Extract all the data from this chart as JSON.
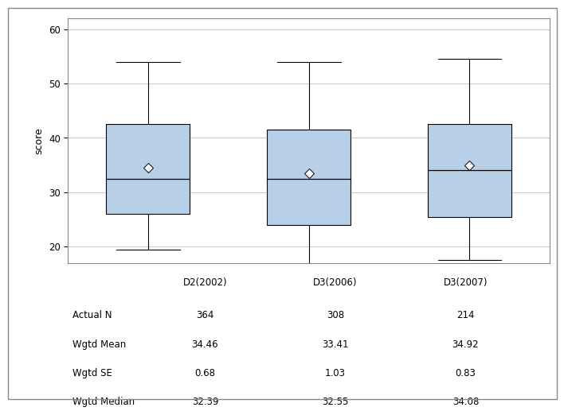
{
  "categories": [
    "D2(2002)",
    "D3(2006)",
    "D3(2007)"
  ],
  "boxes": [
    {
      "whisker_low": 19.5,
      "q1": 26.0,
      "median": 32.5,
      "q3": 42.5,
      "whisker_high": 54.0,
      "mean": 34.46
    },
    {
      "whisker_low": 15.0,
      "q1": 24.0,
      "median": 32.5,
      "q3": 41.5,
      "whisker_high": 54.0,
      "mean": 33.41
    },
    {
      "whisker_low": 17.5,
      "q1": 25.5,
      "median": 34.0,
      "q3": 42.5,
      "whisker_high": 54.5,
      "mean": 34.92
    }
  ],
  "ylim": [
    17,
    62
  ],
  "yticks": [
    20,
    30,
    40,
    50,
    60
  ],
  "ylabel": "score",
  "box_color": "#b8cfe8",
  "box_edge_color": "#000000",
  "whisker_color": "#000000",
  "median_color": "#000000",
  "mean_marker": "D",
  "mean_marker_color": "white",
  "mean_marker_edge_color": "#000000",
  "mean_marker_size": 6,
  "table_rows": [
    "Actual N",
    "Wgtd Mean",
    "Wgtd SE",
    "Wgtd Median"
  ],
  "table_data": [
    [
      "364",
      "308",
      "214"
    ],
    [
      "34.46",
      "33.41",
      "34.92"
    ],
    [
      "0.68",
      "1.03",
      "0.83"
    ],
    [
      "32.39",
      "32.55",
      "34.08"
    ]
  ],
  "box_width": 0.52,
  "background_color": "#ffffff",
  "plot_area_color": "#ffffff",
  "grid_color": "#cccccc",
  "border_color": "#888888"
}
